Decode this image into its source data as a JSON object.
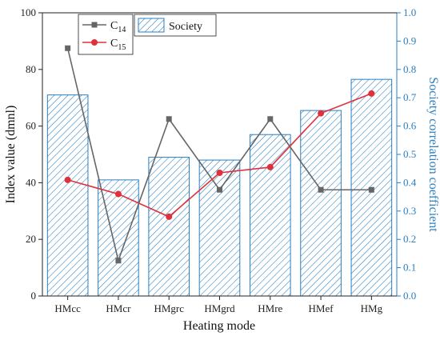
{
  "chart_data": {
    "type": "bar",
    "categories": [
      "HMcc",
      "HMcr",
      "HMgrc",
      "HMgrd",
      "HMre",
      "HMef",
      "HMg"
    ],
    "xlabel": "Heating mode",
    "ylabel": "Index value (dmnl)",
    "ylabel_right": "Society correlation coefficient",
    "ylim": [
      0,
      100
    ],
    "ylim_right": [
      0,
      1.0
    ],
    "yticks": [
      "0",
      "20",
      "40",
      "60",
      "80",
      "100"
    ],
    "yticks_right": [
      "0.0",
      "0.1",
      "0.2",
      "0.3",
      "0.4",
      "0.5",
      "0.6",
      "0.7",
      "0.8",
      "0.9",
      "1.0"
    ],
    "grid": false,
    "legend_position": "top-left",
    "bars": {
      "name": "Society",
      "axis": "right",
      "values": [
        0.71,
        0.41,
        0.49,
        0.48,
        0.57,
        0.655,
        0.765
      ],
      "color": "#2a7fc0"
    },
    "series": [
      {
        "name": "C",
        "subscript": "14",
        "axis": "left",
        "color": "#666666",
        "marker": "square",
        "values": [
          87.5,
          12.5,
          62.5,
          37.5,
          62.5,
          37.5,
          37.5
        ]
      },
      {
        "name": "C",
        "subscript": "15",
        "axis": "left",
        "color": "#e0313b",
        "marker": "circle",
        "values": [
          41,
          36,
          28,
          43.5,
          45.5,
          64.5,
          71.5
        ]
      }
    ]
  }
}
